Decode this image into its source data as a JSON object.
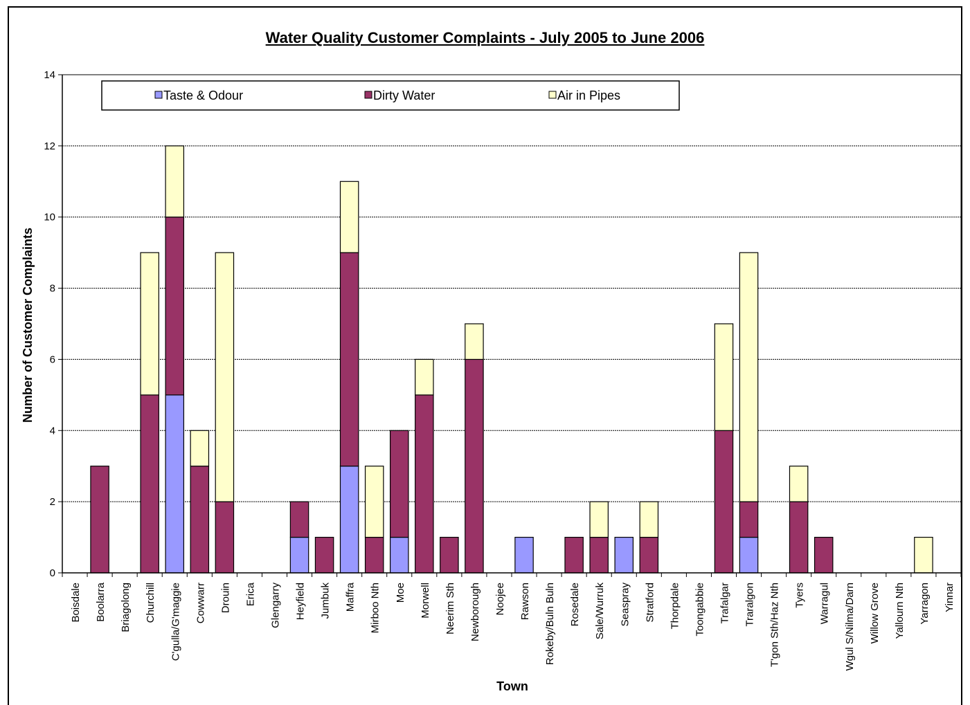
{
  "chart_data": {
    "type": "bar",
    "stacked": true,
    "title": "Water Quality Customer Complaints - July 2005 to June 2006",
    "xlabel": "Town",
    "ylabel": "Number of Customer Complaints",
    "ylim": [
      0,
      14
    ],
    "yticks": [
      0,
      2,
      4,
      6,
      8,
      10,
      12,
      14
    ],
    "grid": true,
    "legend_position": "top",
    "categories": [
      "Boisdale",
      "Boolarra",
      "Briagolong",
      "Churchill",
      "C'gulla/G'maggie",
      "Cowwarr",
      "Drouin",
      "Erica",
      "Glengarry",
      "Heyfield",
      "Jumbuk",
      "Maffra",
      "Mirboo Nth",
      "Moe",
      "Morwell",
      "Neerim Sth",
      "Newborough",
      "Noojee",
      "Rawson",
      "Rokeby/Buln Buln",
      "Rosedale",
      "Sale/Wurruk",
      "Seaspray",
      "Stratford",
      "Thorpdale",
      "Toongabbie",
      "Trafalgar",
      "Traralgon",
      "T'gon Sth/Haz Nth",
      "Tyers",
      "Warragul",
      "Wgul S/Nilma/Darn",
      "Willow Grove",
      "Yallourn Nth",
      "Yarragon",
      "Yinnar"
    ],
    "series": [
      {
        "name": "Taste & Odour",
        "color": "#9999ff",
        "values": [
          0,
          0,
          0,
          0,
          5,
          0,
          0,
          0,
          0,
          1,
          0,
          3,
          0,
          1,
          0,
          0,
          0,
          0,
          1,
          0,
          0,
          0,
          1,
          0,
          0,
          0,
          0,
          1,
          0,
          0,
          0,
          0,
          0,
          0,
          0,
          0
        ]
      },
      {
        "name": "Dirty Water",
        "color": "#993366",
        "values": [
          0,
          3,
          0,
          5,
          5,
          3,
          2,
          0,
          0,
          1,
          1,
          6,
          1,
          3,
          5,
          1,
          6,
          0,
          0,
          0,
          1,
          1,
          0,
          1,
          0,
          0,
          4,
          1,
          0,
          2,
          1,
          0,
          0,
          0,
          0,
          0
        ]
      },
      {
        "name": "Air in Pipes",
        "color": "#ffffcc",
        "values": [
          0,
          0,
          0,
          4,
          2,
          1,
          7,
          0,
          0,
          0,
          0,
          2,
          2,
          0,
          1,
          0,
          1,
          0,
          0,
          0,
          0,
          1,
          0,
          1,
          0,
          0,
          3,
          7,
          0,
          1,
          0,
          0,
          0,
          0,
          1,
          0
        ]
      }
    ]
  }
}
